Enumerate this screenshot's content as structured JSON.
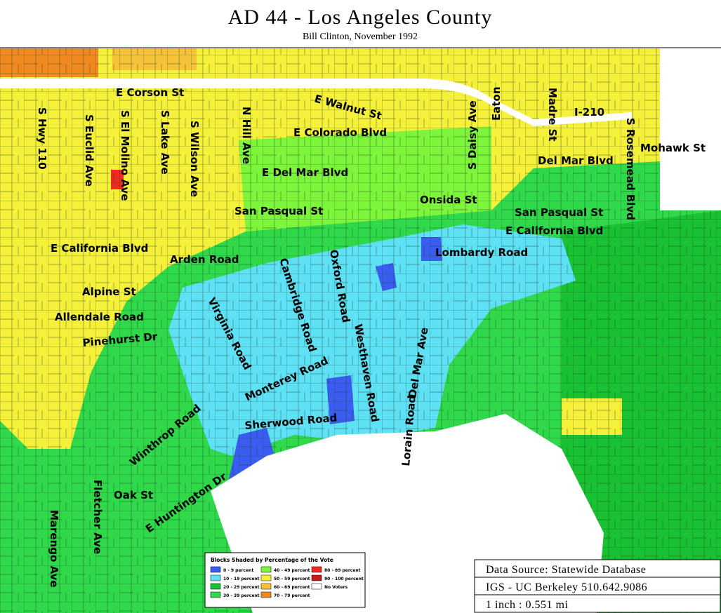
{
  "header": {
    "title": "AD 44 - Los Angeles County",
    "subtitle": "Bill Clinton, November 1992"
  },
  "streets": [
    "E Corson St",
    "E Walnut St",
    "S Daisy Ave",
    "Eaton",
    "Madre St",
    "I-210",
    "S Rosemead Blvd",
    "Mohawk St",
    "E Colorado Blvd",
    "S Hwy 110",
    "S Euclid Ave",
    "S El Molino Ave",
    "S Lake Ave",
    "S Wilson Ave",
    "N Hill Ave",
    "E Del Mar Blvd",
    "Del Mar Blvd",
    "Onsida St",
    "San Pasqual St",
    "San Pasqual St",
    "E California Blvd",
    "E California Blvd",
    "Lombardy Road",
    "Arden Road",
    "Alpine St",
    "Allendale Road",
    "Pinehurst Dr",
    "Virginia Road",
    "Cambridge Road",
    "Oxford Road",
    "Westhaven Road",
    "Del Mar Ave",
    "Monterey Road",
    "Sherwood Road",
    "Lorain Road",
    "Winthrop Road",
    "E Huntington Dr",
    "Oak St",
    "Fletcher Ave",
    "Marengo Ave"
  ],
  "legend": {
    "title": "Blocks Shaded by Percentage of the Vote",
    "items": [
      {
        "label": "0 - 9 percent",
        "color": "#3a5cf0"
      },
      {
        "label": "10 - 19 percent",
        "color": "#5ee0f5"
      },
      {
        "label": "20 - 29 percent",
        "color": "#19c233"
      },
      {
        "label": "30 - 39 percent",
        "color": "#2fd94a"
      },
      {
        "label": "40 - 49 percent",
        "color": "#7cf53a"
      },
      {
        "label": "50 - 59 percent",
        "color": "#f5f03a"
      },
      {
        "label": "60 - 69 percent",
        "color": "#f5c23a"
      },
      {
        "label": "70 - 79 percent",
        "color": "#f08a20"
      },
      {
        "label": "80 - 89 percent",
        "color": "#f02a20"
      },
      {
        "label": "90 - 100 percent",
        "color": "#c81818"
      },
      {
        "label": "No Voters",
        "color": "#ffffff"
      }
    ]
  },
  "source": {
    "lines": [
      "Data Source: Statewide Database",
      "IGS - UC Berkeley 510.642.9086",
      "1 inch : 0.551 mi"
    ]
  }
}
